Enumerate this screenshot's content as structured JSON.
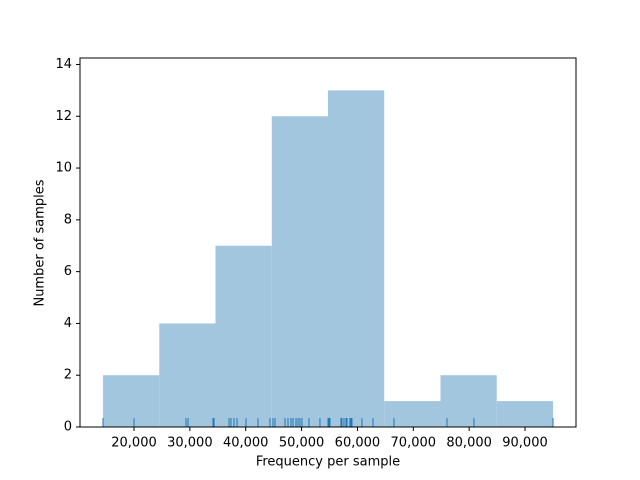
{
  "chart_data": {
    "type": "histogram",
    "xlabel": "Frequency per sample",
    "ylabel": "Number of samples",
    "bins": [
      14450,
      24520,
      34590,
      44660,
      54730,
      64800,
      74870,
      84940,
      95010
    ],
    "counts": [
      2,
      4,
      7,
      12,
      13,
      1,
      2,
      1
    ],
    "color": "#a3c6df",
    "rug": [
      14450,
      20000,
      29310,
      29670,
      34140,
      34320,
      37010,
      37360,
      37900,
      38440,
      40050,
      42200,
      44340,
      44880,
      45240,
      47030,
      47570,
      48100,
      48460,
      49000,
      49360,
      49710,
      50070,
      51320,
      53290,
      54730,
      54910,
      55080,
      57050,
      57230,
      57590,
      57950,
      58130,
      58660,
      58840,
      59020,
      60810,
      62780,
      66540,
      76030,
      80860,
      95010
    ],
    "rug_color": "#1f77b4",
    "xlim": [
      10330,
      99130
    ],
    "ylim": [
      0,
      14.25
    ],
    "xticks": [
      {
        "value": 20000,
        "label": "20,000"
      },
      {
        "value": 30000,
        "label": "30,000"
      },
      {
        "value": 40000,
        "label": "40,000"
      },
      {
        "value": 50000,
        "label": "50,000"
      },
      {
        "value": 60000,
        "label": "60,000"
      },
      {
        "value": 70000,
        "label": "70,000"
      },
      {
        "value": 80000,
        "label": "80,000"
      },
      {
        "value": 90000,
        "label": "90,000"
      }
    ],
    "yticks": [
      0,
      2,
      4,
      6,
      8,
      10,
      12,
      14
    ]
  }
}
